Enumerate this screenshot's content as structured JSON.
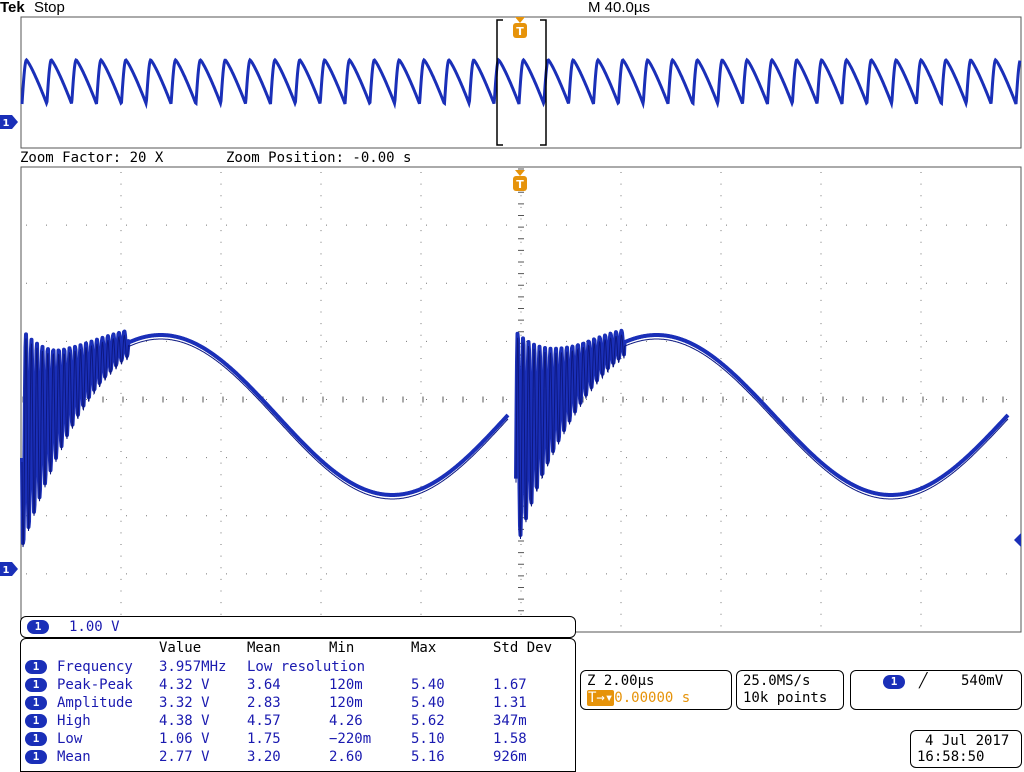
{
  "header": {
    "brand": "Tek",
    "status": "Stop",
    "timebase": "M 40.0µs"
  },
  "zoom_bar": {
    "factor": "Zoom Factor: 20 X",
    "position": "Zoom Position: -0.00 s"
  },
  "markers": {
    "trigger": "T",
    "channel": "1"
  },
  "channel_box": {
    "channel": "1",
    "scale": "1.00 V"
  },
  "measurements": {
    "headers": [
      "Value",
      "Mean",
      "Min",
      "Max",
      "Std Dev"
    ],
    "rows": [
      {
        "ch": "1",
        "name": "Frequency",
        "value": "3.957MHz",
        "mean": "Low resolution",
        "min": "",
        "max": "",
        "std": ""
      },
      {
        "ch": "1",
        "name": "Peak-Peak",
        "value": "4.32 V",
        "mean": "3.64",
        "min": "120m",
        "max": "5.40",
        "std": "1.67"
      },
      {
        "ch": "1",
        "name": "Amplitude",
        "value": "3.32 V",
        "mean": "2.83",
        "min": "120m",
        "max": "5.40",
        "std": "1.31"
      },
      {
        "ch": "1",
        "name": "High",
        "value": "4.38 V",
        "mean": "4.57",
        "min": "4.26",
        "max": "5.62",
        "std": "347m"
      },
      {
        "ch": "1",
        "name": "Low",
        "value": "1.06 V",
        "mean": "1.75",
        "min": "−220m",
        "max": "5.10",
        "std": "1.58"
      },
      {
        "ch": "1",
        "name": "Mean",
        "value": "2.77 V",
        "mean": "3.20",
        "min": "2.60",
        "max": "5.16",
        "std": "926m"
      }
    ]
  },
  "horizontal_box": {
    "zoom_scale": "Z 2.00µs",
    "trigger_pos": "0.00000 s",
    "trigger_prefix": "T→▾"
  },
  "acq_box": {
    "rate": "25.0MS/s",
    "points": "10k points"
  },
  "trigger_box": {
    "channel": "1",
    "slope": "╱",
    "level": "540mV"
  },
  "datetime": {
    "date": "4 Jul  2017",
    "time": "16:58:50"
  },
  "colors": {
    "trace": "#1a2fb8",
    "trigger_marker": "#e6930a",
    "grid": "#8a8a8a"
  }
}
